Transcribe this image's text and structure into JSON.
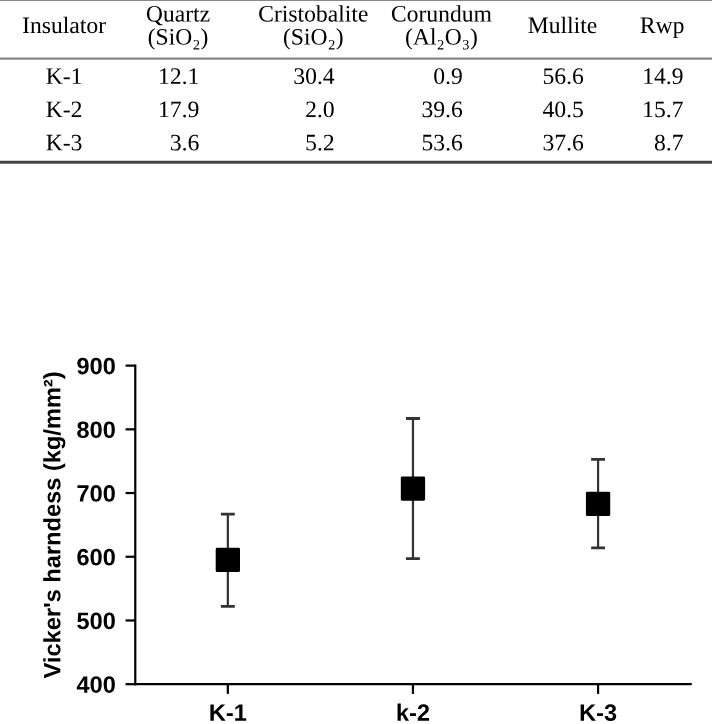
{
  "chart_data": [
    {
      "type": "other",
      "ylabel": "Insulator",
      "categories": [
        "Quartz\n(SiO₂)",
        "Cristobalite\n(SiO₂)",
        "Corundum\n(Al₂O₃)",
        "Mullite",
        "Rwp"
      ],
      "y_categories": [
        "K-1",
        "K-2",
        "K-3"
      ],
      "cell_labels": [
        [
          "12.1",
          "30.4",
          "0.9",
          "56.6",
          "14.9"
        ],
        [
          "17.9",
          "2.0",
          "39.6",
          "40.5",
          "15.7"
        ],
        [
          "3.6",
          "5.2",
          "53.6",
          "37.6",
          "8.7"
        ]
      ]
    },
    {
      "type": "scatter",
      "ylabel": "Vicker's harndess (kg/mm²)",
      "categories": [
        "K-1",
        "k-2",
        "K-3"
      ],
      "values": [
        595,
        707,
        683
      ],
      "errors": [
        [
          522,
          667
        ],
        [
          597,
          817
        ],
        [
          614,
          753
        ]
      ],
      "color": "#000000",
      "marker": "square",
      "ylim": [
        400,
        900
      ],
      "yticks": [
        400,
        500,
        600,
        700,
        800,
        900
      ],
      "grid": false,
      "legend": false
    }
  ]
}
